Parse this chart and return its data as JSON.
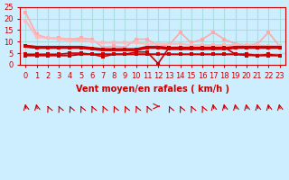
{
  "bg_color": "#cceeff",
  "grid_color": "#aadddd",
  "title": "",
  "xlabel": "Vent moyen/en rafales ( km/h )",
  "xlabel_color": "#cc0000",
  "ylabel_color": "#cc0000",
  "tick_color": "#cc0000",
  "xlim": [
    0,
    23
  ],
  "ylim": [
    0,
    25
  ],
  "yticks": [
    0,
    5,
    10,
    15,
    20,
    25
  ],
  "xticks": [
    0,
    1,
    2,
    3,
    4,
    5,
    6,
    7,
    8,
    9,
    10,
    11,
    12,
    13,
    14,
    15,
    16,
    17,
    18,
    19,
    20,
    21,
    22,
    23
  ],
  "x": [
    0,
    1,
    2,
    3,
    4,
    5,
    6,
    7,
    8,
    9,
    10,
    11,
    12,
    13,
    14,
    15,
    16,
    17,
    18,
    19,
    20,
    21,
    22,
    23
  ],
  "line1_y": [
    22.5,
    13.0,
    11.5,
    11.5,
    11.0,
    11.5,
    11.0,
    7.5,
    8.0,
    7.5,
    11.0,
    11.0,
    8.0,
    8.5,
    14.0,
    9.5,
    11.0,
    14.0,
    11.0,
    9.0,
    8.5,
    9.0,
    14.0,
    8.0
  ],
  "line1_color": "#ffaaaa",
  "line1_lw": 1.2,
  "line2_y": [
    4.0,
    4.0,
    4.0,
    4.0,
    4.0,
    4.5,
    4.5,
    4.5,
    4.5,
    4.5,
    4.5,
    4.5,
    4.5,
    4.5,
    4.5,
    4.5,
    4.5,
    4.5,
    4.5,
    4.5,
    4.5,
    4.0,
    4.0,
    4.0
  ],
  "line2_color": "#cc0000",
  "line2_lw": 1.5,
  "line3_y": [
    8.0,
    7.5,
    7.5,
    7.5,
    7.5,
    7.5,
    7.0,
    6.5,
    6.5,
    6.5,
    6.5,
    7.5,
    7.5,
    7.0,
    7.0,
    7.0,
    7.0,
    7.0,
    7.0,
    7.5,
    7.5,
    7.5,
    7.5,
    7.5
  ],
  "line3_color": "#cc0000",
  "line3_lw": 2.5,
  "line4_y": [
    19.0,
    12.0,
    11.5,
    11.0,
    10.5,
    10.5,
    10.0,
    9.5,
    9.5,
    9.5,
    9.5,
    9.0,
    9.0,
    9.0,
    9.0,
    8.5,
    8.5,
    8.5,
    8.5,
    8.5,
    8.5,
    8.5,
    8.0,
    8.0
  ],
  "line4_color": "#ffbbbb",
  "line4_lw": 1.5,
  "line5_y": [
    4.5,
    4.5,
    4.5,
    4.5,
    5.0,
    5.0,
    4.5,
    3.5,
    4.5,
    4.5,
    5.5,
    5.5,
    0.5,
    7.5,
    7.5,
    7.5,
    7.5,
    7.5,
    7.5,
    4.5,
    4.0,
    4.0,
    4.5,
    4.0
  ],
  "line5_color": "#cc0000",
  "line5_lw": 1.2,
  "wind_dirs": [
    225,
    225,
    247,
    247,
    247,
    247,
    247,
    247,
    247,
    247,
    247,
    247,
    90,
    247,
    247,
    247,
    247,
    225,
    225,
    225,
    225,
    225,
    225,
    225
  ],
  "arrow_color": "#cc0000"
}
